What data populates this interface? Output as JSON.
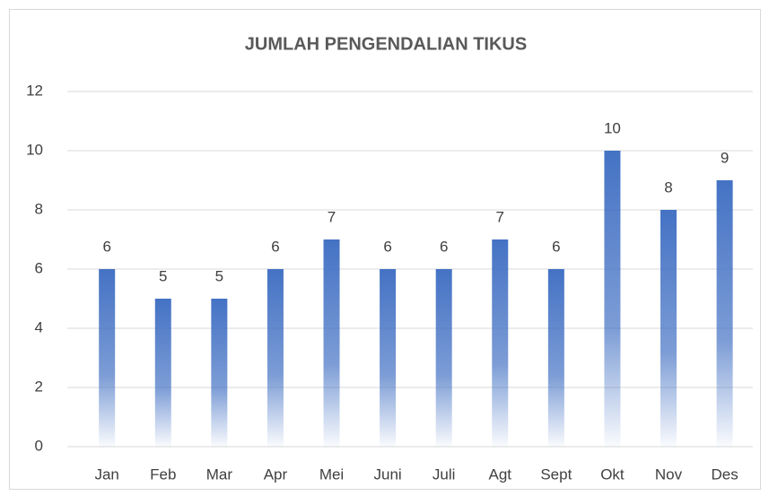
{
  "chart_data": {
    "type": "bar",
    "title": "JUMLAH PENGENDALIAN TIKUS",
    "categories": [
      "Jan",
      "Feb",
      "Mar",
      "Apr",
      "Mei",
      "Juni",
      "Juli",
      "Agt",
      "Sept",
      "Okt",
      "Nov",
      "Des"
    ],
    "values": [
      6,
      5,
      5,
      6,
      7,
      6,
      6,
      7,
      6,
      10,
      8,
      9
    ],
    "color": "#4472c4",
    "ylim": [
      0,
      12
    ],
    "yticks": [
      0,
      2,
      4,
      6,
      8,
      10,
      12
    ],
    "grid": true
  }
}
